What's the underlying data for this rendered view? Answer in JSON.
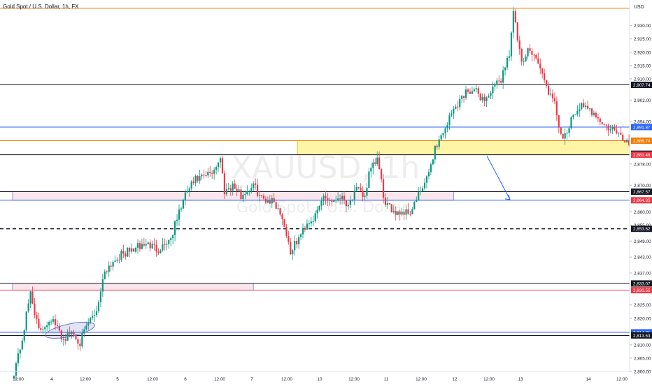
{
  "header": {
    "title": "Gold Spot / U.S. Dollar, 1h, FX"
  },
  "watermark": {
    "symbol": "XAUUSD, 1h",
    "subtitle": "Gold Spot / U.S. Dollar"
  },
  "price_scale": {
    "currency": "USD"
  },
  "colors": {
    "up": "#089981",
    "down": "#f23645",
    "orange": "#f57c00",
    "blue": "#2962ff",
    "yellow_zone": "#fff59d",
    "pink_zone": "#fce4ec"
  },
  "chart_data": {
    "type": "candlestick",
    "title": "Gold Spot / U.S. Dollar, 1h, FX",
    "ylim": [
      2800,
      2937
    ],
    "y_ticks": [
      "2,930.00",
      "2,925.00",
      "2,920.00",
      "2,915.00",
      "2,910.00",
      "2,902.00",
      "2,894.00",
      "2,878.00",
      "2,870.00",
      "2,860.00",
      "2,855.00",
      "2,849.00",
      "2,843.00",
      "2,837.00",
      "2,825.00",
      "2,820.00",
      "2,810.00",
      "2,805.00",
      "2,800.00"
    ],
    "x_ticks": [
      "12:00",
      "4",
      "12:00",
      "5",
      "12:00",
      "6",
      "12:00",
      "7",
      "12:00",
      "10",
      "12:00",
      "11",
      "12:00",
      "12",
      "12:00",
      "13",
      "14",
      "12:00"
    ],
    "price_labels": [
      {
        "text": "2,907.74",
        "value": 2907.74,
        "style": "black"
      },
      {
        "text": "2,891.87",
        "value": 2891.87,
        "style": "blue"
      },
      {
        "text": "2,886.74",
        "value": 2886.74,
        "style": "orange"
      },
      {
        "text": "2,881.84",
        "value": 2881.84,
        "style": "black"
      },
      {
        "text": "2,881.46",
        "value": 2881.46,
        "style": "red"
      },
      {
        "text": "2,867.57",
        "value": 2867.57,
        "style": "black"
      },
      {
        "text": "2,864.35",
        "value": 2864.35,
        "style": "red"
      },
      {
        "text": "2,853.62",
        "value": 2853.62,
        "style": "black"
      },
      {
        "text": "2,833.07",
        "value": 2833.07,
        "style": "black"
      },
      {
        "text": "2,830.55",
        "value": 2830.55,
        "style": "red"
      },
      {
        "text": "2,814.71",
        "value": 2814.71,
        "style": "blue"
      },
      {
        "text": "2,813.53",
        "value": 2813.53,
        "style": "black"
      }
    ],
    "horizontal_lines": [
      {
        "value": 2936.5,
        "color": "orange",
        "dash": false
      },
      {
        "value": 2907.74,
        "color": "black",
        "dash": false
      },
      {
        "value": 2891.87,
        "color": "blue",
        "dash": false
      },
      {
        "value": 2886.74,
        "color": "orange",
        "dash": false
      },
      {
        "value": 2881.46,
        "color": "black",
        "dash": false
      },
      {
        "value": 2867.57,
        "color": "black",
        "dash": false
      },
      {
        "value": 2864.35,
        "color": "blue",
        "dash": false
      },
      {
        "value": 2853.62,
        "color": "black",
        "dash": true
      },
      {
        "value": 2833.07,
        "color": "black",
        "dash": false
      },
      {
        "value": 2830.55,
        "color": "red",
        "dash": false
      },
      {
        "value": 2814.71,
        "color": "blue",
        "dash": false
      },
      {
        "value": 2813.53,
        "color": "black",
        "dash": false
      }
    ],
    "zones": [
      {
        "from_bar": 138,
        "to_bar": 999,
        "low": 2881.46,
        "high": 2886.74,
        "kind": "yellow"
      },
      {
        "from_bar": 0,
        "to_bar": 213,
        "low": 2864.35,
        "high": 2867.57,
        "kind": "pink"
      },
      {
        "from_bar": 0,
        "to_bar": 116,
        "low": 2830.55,
        "high": 2833.07,
        "kind": "pink"
      }
    ],
    "ohlc_knots": [
      [
        0,
        2800
      ],
      [
        4,
        2812
      ],
      [
        8,
        2830
      ],
      [
        12,
        2815
      ],
      [
        18,
        2820
      ],
      [
        24,
        2812
      ],
      [
        28,
        2815
      ],
      [
        32,
        2811
      ],
      [
        36,
        2818
      ],
      [
        40,
        2823
      ],
      [
        44,
        2838
      ],
      [
        50,
        2843
      ],
      [
        58,
        2846
      ],
      [
        64,
        2848
      ],
      [
        70,
        2846
      ],
      [
        76,
        2850
      ],
      [
        80,
        2860
      ],
      [
        84,
        2868
      ],
      [
        88,
        2872
      ],
      [
        92,
        2873
      ],
      [
        96,
        2875
      ],
      [
        100,
        2880
      ],
      [
        102,
        2868
      ],
      [
        106,
        2870
      ],
      [
        110,
        2866
      ],
      [
        116,
        2870
      ],
      [
        120,
        2865
      ],
      [
        126,
        2864
      ],
      [
        130,
        2858
      ],
      [
        134,
        2845
      ],
      [
        138,
        2850
      ],
      [
        142,
        2856
      ],
      [
        146,
        2858
      ],
      [
        150,
        2866
      ],
      [
        154,
        2864
      ],
      [
        158,
        2866
      ],
      [
        162,
        2863
      ],
      [
        166,
        2868
      ],
      [
        170,
        2866
      ],
      [
        172,
        2874
      ],
      [
        176,
        2880
      ],
      [
        180,
        2862
      ],
      [
        186,
        2860
      ],
      [
        192,
        2860
      ],
      [
        196,
        2866
      ],
      [
        200,
        2872
      ],
      [
        204,
        2884
      ],
      [
        208,
        2890
      ],
      [
        212,
        2897
      ],
      [
        216,
        2902
      ],
      [
        220,
        2906
      ],
      [
        224,
        2905
      ],
      [
        228,
        2902
      ],
      [
        232,
        2906
      ],
      [
        236,
        2910
      ],
      [
        240,
        2920
      ],
      [
        242,
        2935
      ],
      [
        246,
        2915
      ],
      [
        250,
        2922
      ],
      [
        254,
        2916
      ],
      [
        258,
        2907
      ],
      [
        262,
        2900
      ],
      [
        266,
        2886
      ],
      [
        270,
        2894
      ],
      [
        274,
        2900
      ],
      [
        278,
        2898
      ],
      [
        282,
        2897
      ],
      [
        286,
        2892
      ],
      [
        290,
        2891
      ],
      [
        294,
        2888
      ],
      [
        298,
        2886
      ],
      [
        302,
        2890
      ],
      [
        306,
        2888
      ],
      [
        310,
        2881
      ]
    ]
  }
}
